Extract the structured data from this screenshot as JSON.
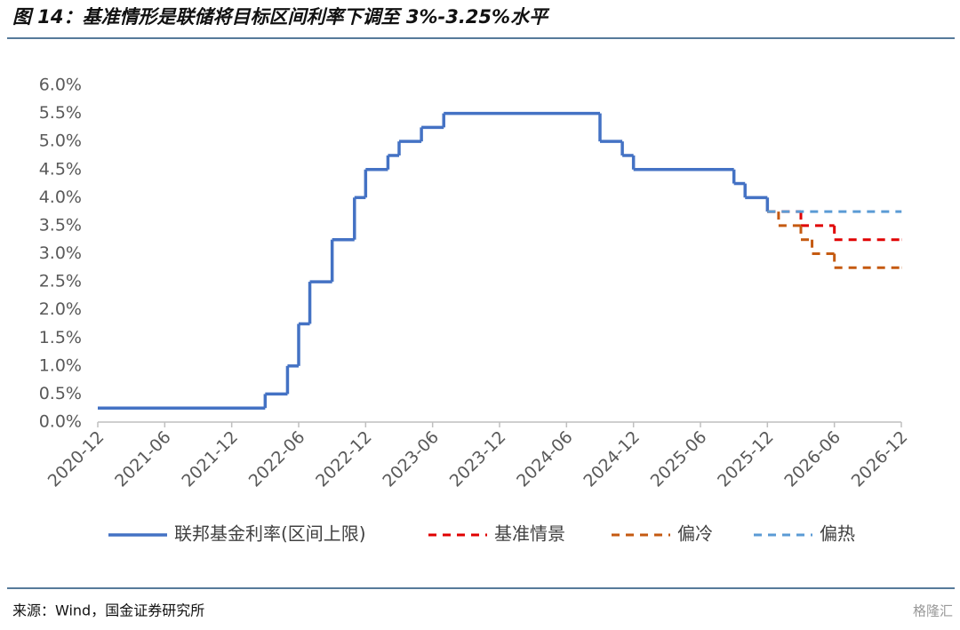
{
  "chart_data": {
    "type": "step_line",
    "title": "图 14：基准情形是联储将目标区间利率下调至 3%-3.25%水平",
    "source": "来源：Wind，国金证券研究所",
    "watermark": "格隆汇",
    "xlim": [
      "2020-12",
      "2026-12"
    ],
    "xticks": [
      "2020-12",
      "2021-06",
      "2021-12",
      "2022-06",
      "2022-12",
      "2023-06",
      "2023-12",
      "2024-06",
      "2024-12",
      "2025-06",
      "2025-12",
      "2026-06",
      "2026-12"
    ],
    "ylim": [
      0,
      6
    ],
    "yticks": [
      {
        "value": 0,
        "label": "0.0%"
      },
      {
        "value": 0.5,
        "label": "0.5%"
      },
      {
        "value": 1,
        "label": "1.0%"
      },
      {
        "value": 1.5,
        "label": "1.5%"
      },
      {
        "value": 2,
        "label": "2.0%"
      },
      {
        "value": 2.5,
        "label": "2.5%"
      },
      {
        "value": 3,
        "label": "3.0%"
      },
      {
        "value": 3.5,
        "label": "3.5%"
      },
      {
        "value": 4,
        "label": "4.0%"
      },
      {
        "value": 4.5,
        "label": "4.5%"
      },
      {
        "value": 5,
        "label": "5.0%"
      },
      {
        "value": 5.5,
        "label": "5.5%"
      },
      {
        "value": 6,
        "label": "6.0%"
      }
    ],
    "series": [
      {
        "name": "联邦基金利率(区间上限)",
        "color": "#4472c4",
        "dashed": false,
        "x": [
          "2020-12",
          "2022-03",
          "2022-05",
          "2022-06",
          "2022-07",
          "2022-09",
          "2022-11",
          "2022-12",
          "2023-02",
          "2023-03",
          "2023-05",
          "2023-07",
          "2024-09",
          "2024-11",
          "2024-12",
          "2025-09",
          "2025-10",
          "2025-12"
        ],
        "values": [
          0.25,
          0.5,
          1,
          1.75,
          2.5,
          3.25,
          4,
          4.5,
          4.75,
          5,
          5.25,
          5.5,
          5,
          4.75,
          4.5,
          4.25,
          4,
          3.75
        ]
      },
      {
        "name": "基准情景",
        "color": "#e00000",
        "dashed": true,
        "x": [
          "2025-12",
          "2026-03",
          "2026-06",
          "2026-12"
        ],
        "values": [
          3.75,
          3.5,
          3.25,
          3.25
        ]
      },
      {
        "name": "偏冷",
        "color": "#c55a11",
        "dashed": true,
        "x": [
          "2025-12",
          "2026-01",
          "2026-03",
          "2026-04",
          "2026-06",
          "2026-12"
        ],
        "values": [
          3.75,
          3.5,
          3.25,
          3,
          2.75,
          2.75
        ]
      },
      {
        "name": "偏热",
        "color": "#5b9bd5",
        "dashed": true,
        "x": [
          "2025-12",
          "2026-12"
        ],
        "values": [
          3.75,
          3.75
        ]
      }
    ]
  }
}
